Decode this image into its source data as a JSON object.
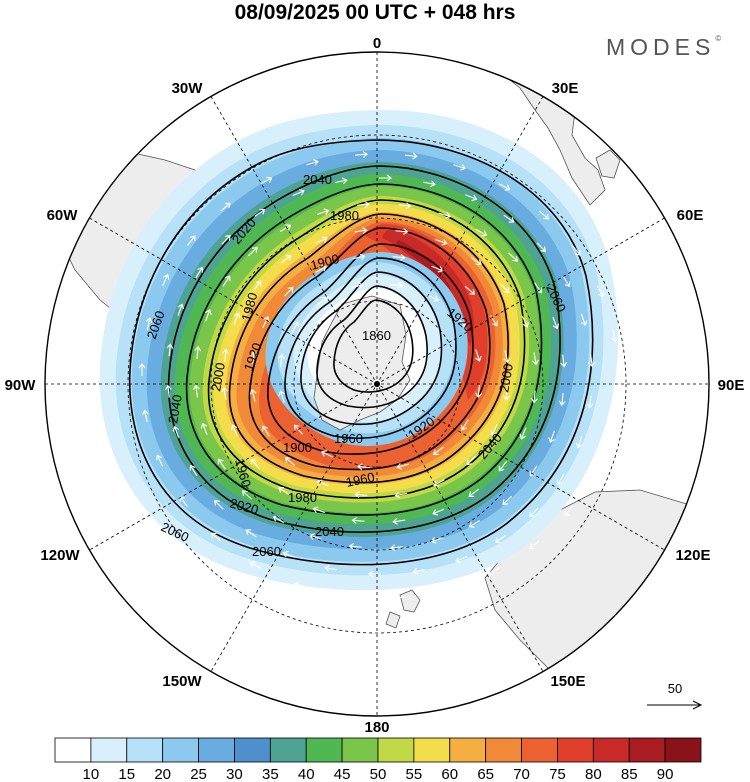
{
  "title": "08/09/2025  00 UTC  + 048 hrs",
  "brand": "MODES",
  "brand_mark": "©",
  "longitude_labels": {
    "n": "0",
    "ne30": "30E",
    "ne60": "60E",
    "e": "90E",
    "se120": "120E",
    "se150": "150E",
    "s": "180",
    "sw150": "150W",
    "sw120": "120W",
    "w": "90W",
    "nw60": "60W",
    "nw30": "30W"
  },
  "wind_reference": {
    "label": "50"
  },
  "colorbar": {
    "colors": [
      "#ffffff",
      "#d8f0fb",
      "#b6e1f7",
      "#8cc9ef",
      "#68ace0",
      "#4e8fcc",
      "#4ea392",
      "#4fb853",
      "#7ac64a",
      "#c1d946",
      "#f4dd4a",
      "#f4ae42",
      "#f08a38",
      "#eb6131",
      "#e03f2c",
      "#c82a28",
      "#a91c22",
      "#8a1319"
    ],
    "ticks": [
      "10",
      "15",
      "20",
      "25",
      "30",
      "35",
      "40",
      "45",
      "50",
      "55",
      "60",
      "65",
      "70",
      "75",
      "80",
      "85",
      "90"
    ]
  },
  "contour_labels": [
    "1860",
    "1900",
    "1900",
    "1920",
    "1920",
    "1920",
    "1960",
    "1960",
    "1960",
    "1980",
    "1980",
    "1980",
    "2000",
    "2000",
    "2020",
    "2020",
    "2040",
    "2040",
    "2040",
    "2040",
    "2060",
    "2060",
    "2060",
    "2060"
  ],
  "colors": {
    "land": "#ededed",
    "coast": "#555555",
    "grid": "#000000"
  }
}
